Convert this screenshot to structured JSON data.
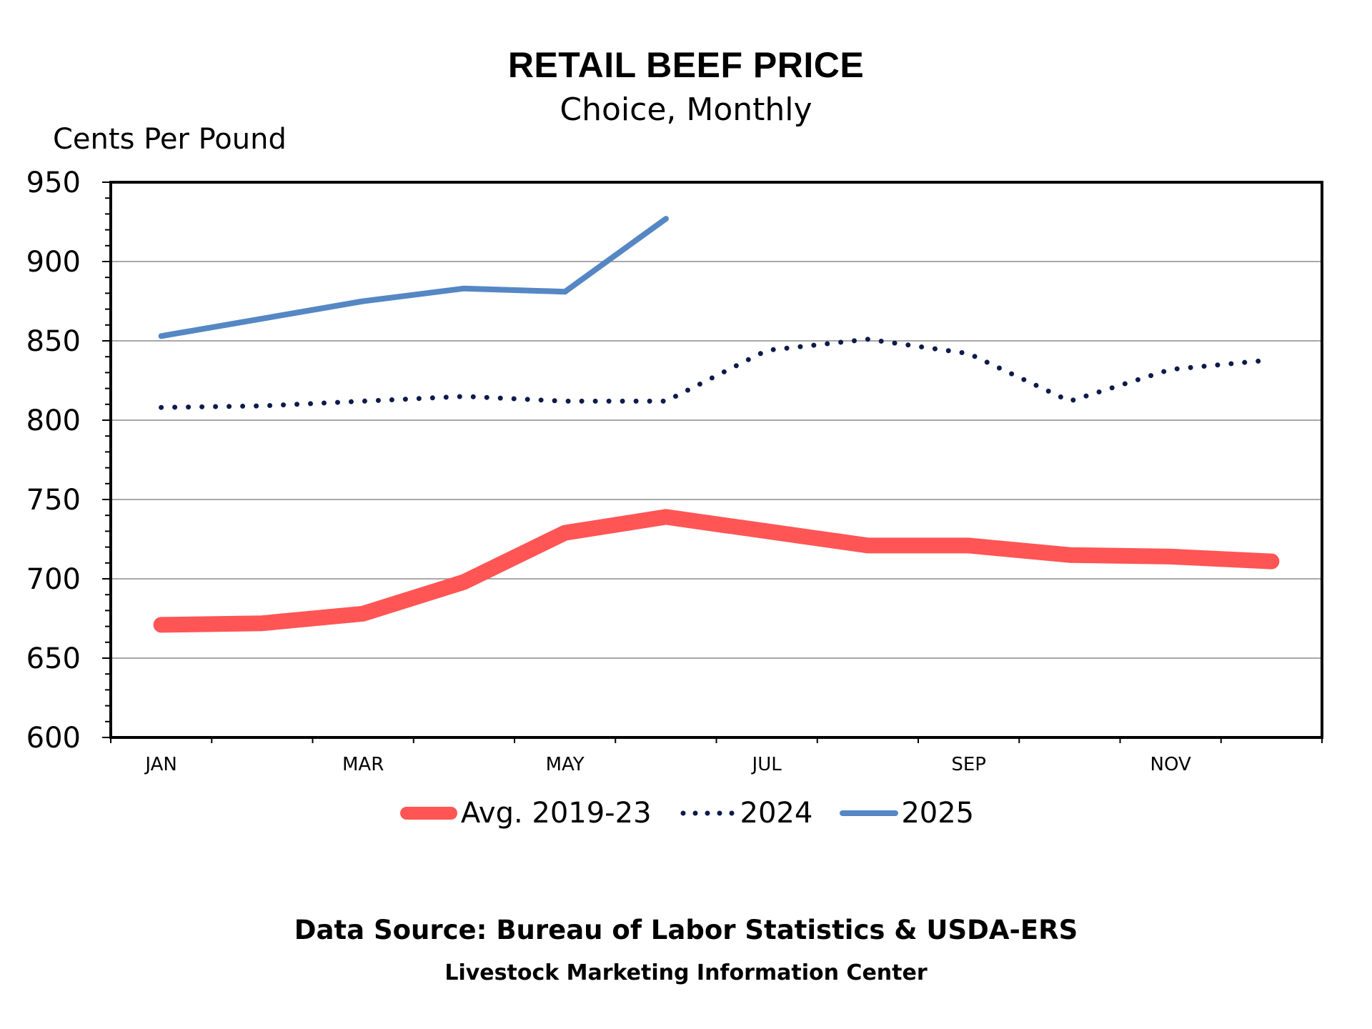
{
  "chart_data": {
    "type": "line",
    "title": "RETAIL BEEF PRICE",
    "subtitle": "Choice, Monthly",
    "ylabel": "Cents Per Pound",
    "xlabel": "",
    "ylim": [
      600,
      950
    ],
    "yticks": [
      600,
      650,
      700,
      750,
      800,
      850,
      900,
      950
    ],
    "x_tick_labels": [
      "JAN",
      "",
      "MAR",
      "",
      "MAY",
      "",
      "JUL",
      "",
      "SEP",
      "",
      "NOV",
      ""
    ],
    "grid": true,
    "legend_position": "bottom",
    "series": [
      {
        "name": "Avg. 2019-23",
        "color": "#ff5555",
        "style": "solid-thick",
        "values": [
          671,
          672,
          678,
          698,
          729,
          739,
          730,
          721,
          721,
          715,
          714,
          711
        ]
      },
      {
        "name": "2024",
        "color": "#0d1b4a",
        "style": "dotted",
        "values": [
          808,
          809,
          812,
          815,
          812,
          812,
          844,
          851,
          842,
          812,
          832,
          838
        ]
      },
      {
        "name": "2025",
        "color": "#5587c4",
        "style": "solid",
        "values": [
          853,
          864,
          875,
          883,
          881,
          927,
          null,
          null,
          null,
          null,
          null,
          null
        ]
      }
    ]
  },
  "footer": {
    "source": "Data Source: Bureau of Labor Statistics & USDA-ERS",
    "center": "Livestock Marketing Information Center"
  }
}
